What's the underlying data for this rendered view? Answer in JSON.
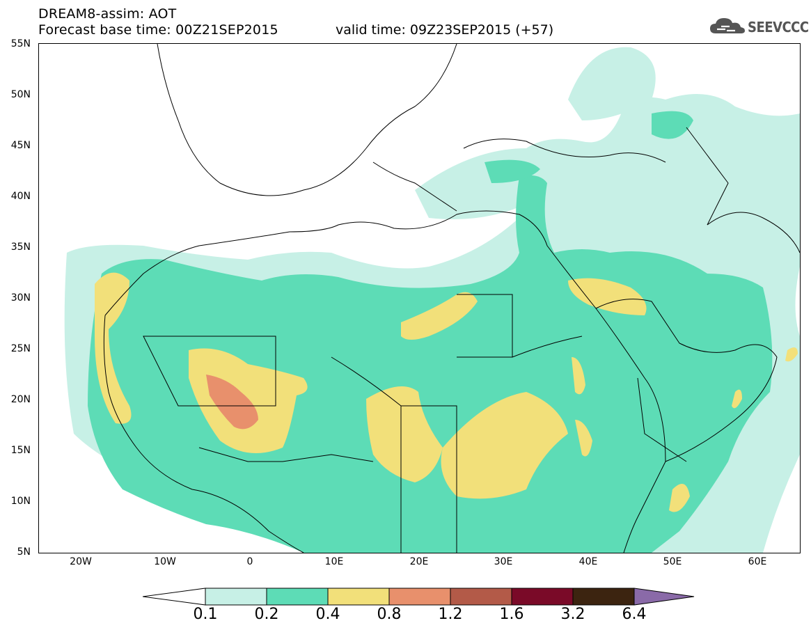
{
  "header": {
    "title": "DREAM8-assim: AOT",
    "base_time": "Forecast base time: 00Z21SEP2015",
    "valid_time": "valid time: 09Z23SEP2015 (+57)"
  },
  "logo": {
    "text": "SEEVCCC",
    "icon": "cloud-icon"
  },
  "map": {
    "lat_labels": [
      "55N",
      "50N",
      "45N",
      "40N",
      "35N",
      "30N",
      "25N",
      "20N",
      "15N",
      "10N",
      "5N"
    ],
    "lon_labels": [
      "20W",
      "10W",
      "0",
      "10E",
      "20E",
      "30E",
      "40E",
      "50E",
      "60E"
    ],
    "lat_values": [
      55,
      50,
      45,
      40,
      35,
      30,
      25,
      20,
      15,
      10,
      5
    ],
    "lon_values": [
      -20,
      -10,
      0,
      10,
      20,
      30,
      40,
      50,
      60
    ],
    "lon_range": [
      -25,
      65
    ],
    "lat_range": [
      5,
      55
    ]
  },
  "colorbar": {
    "labels": [
      "0.1",
      "0.2",
      "0.4",
      "0.8",
      "1.2",
      "1.6",
      "3.2",
      "6.4"
    ],
    "colors": [
      "#ffffff",
      "#c7f0e6",
      "#5ddcb6",
      "#f2e07a",
      "#e8906c",
      "#b35a48",
      "#7a0a28",
      "#3c2410",
      "#8a6aa8"
    ]
  }
}
